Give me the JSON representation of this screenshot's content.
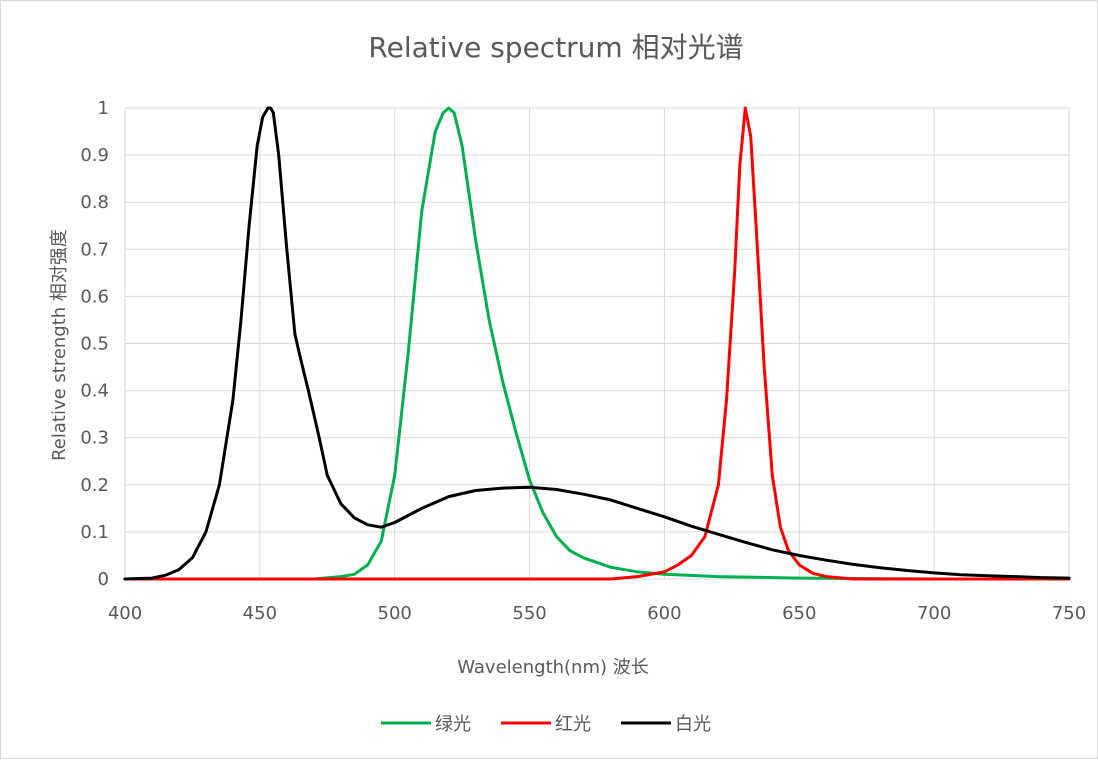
{
  "chart_data": {
    "type": "line",
    "title": "Relative spectrum 相对光谱",
    "xlabel": "Wavelength(nm)  波长",
    "ylabel": "Relative  strength  相对强度",
    "xlim": [
      400,
      750
    ],
    "ylim": [
      0,
      1
    ],
    "xticks": [
      400,
      450,
      500,
      550,
      600,
      650,
      700,
      750
    ],
    "yticks": [
      0,
      0.1,
      0.2,
      0.3,
      0.4,
      0.5,
      0.6,
      0.7,
      0.8,
      0.9,
      1
    ],
    "ytick_labels": [
      "0",
      "0.1",
      "0.2",
      "0.3",
      "0.4",
      "0.5",
      "0.6",
      "0.7",
      "0.8",
      "0.9",
      "1"
    ],
    "grid": true,
    "legend_position": "bottom",
    "series": [
      {
        "name": "绿光",
        "color": "#00b050",
        "x": [
          400,
          470,
          480,
          485,
          490,
          495,
          500,
          505,
          510,
          515,
          518,
          520,
          522,
          525,
          530,
          535,
          540,
          545,
          550,
          555,
          560,
          565,
          570,
          580,
          590,
          600,
          620,
          650,
          700,
          750
        ],
        "y": [
          0,
          0,
          0.005,
          0.01,
          0.03,
          0.08,
          0.22,
          0.48,
          0.78,
          0.95,
          0.99,
          1.0,
          0.99,
          0.92,
          0.72,
          0.55,
          0.42,
          0.31,
          0.21,
          0.14,
          0.09,
          0.06,
          0.045,
          0.025,
          0.015,
          0.01,
          0.005,
          0.002,
          0,
          0
        ]
      },
      {
        "name": "红光",
        "color": "#ff0000",
        "x": [
          400,
          580,
          590,
          600,
          605,
          610,
          615,
          620,
          623,
          626,
          628,
          630,
          632,
          634,
          637,
          640,
          643,
          646,
          650,
          655,
          660,
          670,
          700,
          750
        ],
        "y": [
          0,
          0,
          0.005,
          0.015,
          0.03,
          0.05,
          0.09,
          0.2,
          0.38,
          0.65,
          0.88,
          1.0,
          0.94,
          0.75,
          0.45,
          0.22,
          0.11,
          0.06,
          0.03,
          0.012,
          0.005,
          0,
          0,
          0
        ]
      },
      {
        "name": "白光",
        "color": "#000000",
        "x": [
          400,
          410,
          415,
          420,
          425,
          430,
          435,
          440,
          443,
          446,
          449,
          451,
          453,
          454,
          455,
          457,
          460,
          463,
          465,
          468,
          472,
          475,
          480,
          485,
          490,
          495,
          500,
          510,
          520,
          530,
          540,
          550,
          560,
          570,
          580,
          590,
          600,
          610,
          620,
          630,
          640,
          650,
          660,
          670,
          680,
          690,
          700,
          710,
          720,
          730,
          740,
          750
        ],
        "y": [
          0,
          0.002,
          0.008,
          0.02,
          0.045,
          0.1,
          0.2,
          0.38,
          0.55,
          0.75,
          0.92,
          0.98,
          1.0,
          1.0,
          0.99,
          0.9,
          0.7,
          0.52,
          0.47,
          0.4,
          0.3,
          0.22,
          0.16,
          0.13,
          0.115,
          0.11,
          0.12,
          0.15,
          0.175,
          0.188,
          0.193,
          0.195,
          0.19,
          0.18,
          0.168,
          0.15,
          0.132,
          0.112,
          0.095,
          0.078,
          0.062,
          0.05,
          0.04,
          0.031,
          0.024,
          0.018,
          0.013,
          0.009,
          0.007,
          0.005,
          0.003,
          0.002
        ]
      }
    ]
  }
}
